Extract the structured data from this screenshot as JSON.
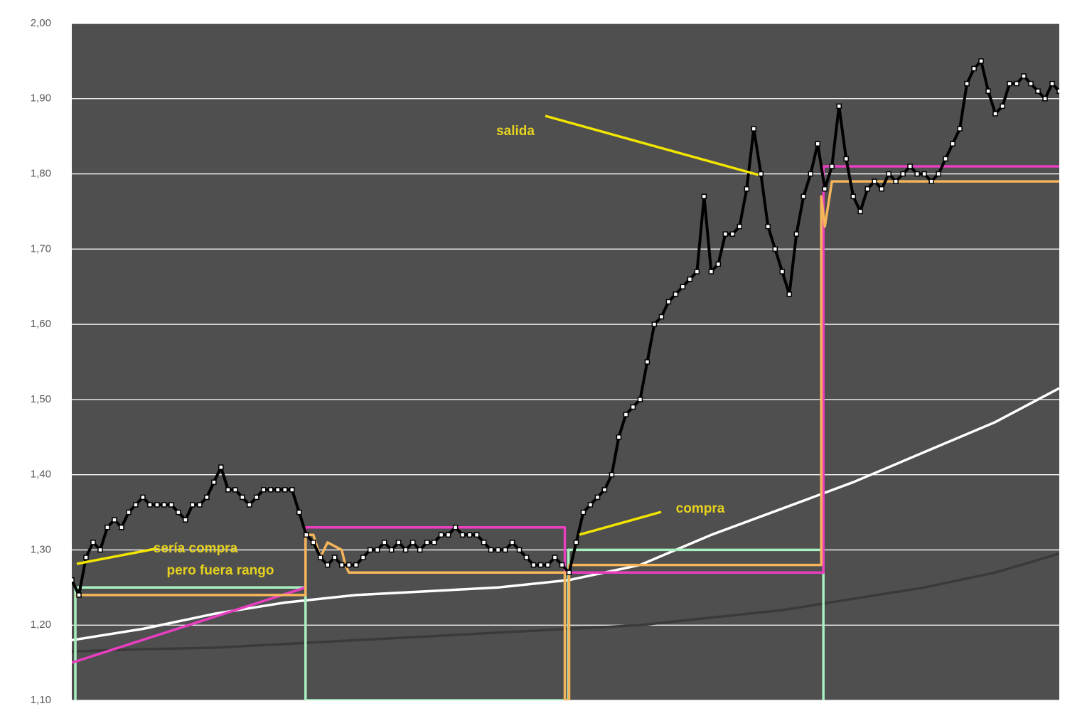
{
  "chart_data": {
    "type": "line",
    "ylim": [
      1.1,
      2.0
    ],
    "yticks": [
      {
        "value": 1.1,
        "label": "1,10"
      },
      {
        "value": 1.2,
        "label": "1,20"
      },
      {
        "value": 1.3,
        "label": "1,30"
      },
      {
        "value": 1.4,
        "label": "1,40"
      },
      {
        "value": 1.5,
        "label": "1,50"
      },
      {
        "value": 1.6,
        "label": "1,60"
      },
      {
        "value": 1.7,
        "label": "1,70"
      },
      {
        "value": 1.8,
        "label": "1,80"
      },
      {
        "value": 1.9,
        "label": "1,90"
      },
      {
        "value": 2.0,
        "label": "2,00"
      }
    ],
    "xlim": [
      0,
      139
    ],
    "grid": true,
    "background": "#4f4f4f",
    "annotations": [
      "salida",
      "compra",
      "sería compra",
      "pero fuera rango"
    ],
    "series": [
      {
        "color": "#ffffff",
        "x": [
          0,
          10,
          20,
          30,
          40,
          50,
          60,
          70,
          80,
          90,
          100,
          110,
          120,
          130,
          139
        ],
        "values": [
          1.18,
          1.195,
          1.215,
          1.23,
          1.24,
          1.245,
          1.25,
          1.26,
          1.28,
          1.32,
          1.355,
          1.39,
          1.43,
          1.47,
          1.515
        ]
      },
      {
        "color": "#3a3a3a",
        "x": [
          0,
          10,
          20,
          30,
          40,
          50,
          60,
          70,
          80,
          90,
          100,
          110,
          120,
          130,
          139
        ],
        "values": [
          1.165,
          1.168,
          1.17,
          1.175,
          1.18,
          1.185,
          1.19,
          1.195,
          1.2,
          1.21,
          1.22,
          1.235,
          1.25,
          1.27,
          1.295
        ]
      },
      {
        "color": "#a8f0c0",
        "x": [
          0.5,
          0.5,
          32.9,
          32.9,
          69.9,
          69.9,
          105.8,
          105.8
        ],
        "values": [
          1.1,
          1.25,
          1.25,
          1.1,
          1.1,
          1.3,
          1.3,
          1.1
        ]
      },
      {
        "color": "#e83ec0",
        "x": [
          0,
          32.9,
          32.9,
          69.4,
          69.4,
          105.8,
          105.8,
          139
        ],
        "values": [
          1.15,
          1.25,
          1.33,
          1.33,
          1.27,
          1.27,
          1.81,
          1.81
        ]
      },
      {
        "color": "#f5b55a",
        "x": [
          0.5,
          32.9,
          32.9,
          34,
          35,
          36,
          38,
          38.5,
          39,
          69.4,
          69.4,
          70,
          70,
          105.5,
          105.5,
          106,
          107,
          139
        ],
        "values": [
          1.24,
          1.24,
          1.32,
          1.32,
          1.29,
          1.31,
          1.3,
          1.28,
          1.27,
          1.27,
          1.1,
          1.1,
          1.28,
          1.28,
          1.77,
          1.73,
          1.79,
          1.79
        ]
      },
      {
        "color": "#000000",
        "markers": true,
        "values": [
          1.26,
          1.24,
          1.29,
          1.31,
          1.3,
          1.33,
          1.34,
          1.33,
          1.35,
          1.36,
          1.37,
          1.36,
          1.36,
          1.36,
          1.36,
          1.35,
          1.34,
          1.36,
          1.36,
          1.37,
          1.39,
          1.41,
          1.38,
          1.38,
          1.37,
          1.36,
          1.37,
          1.38,
          1.38,
          1.38,
          1.38,
          1.38,
          1.35,
          1.32,
          1.31,
          1.29,
          1.28,
          1.29,
          1.28,
          1.28,
          1.28,
          1.29,
          1.3,
          1.3,
          1.31,
          1.3,
          1.31,
          1.3,
          1.31,
          1.3,
          1.31,
          1.31,
          1.32,
          1.32,
          1.33,
          1.32,
          1.32,
          1.32,
          1.31,
          1.3,
          1.3,
          1.3,
          1.31,
          1.3,
          1.29,
          1.28,
          1.28,
          1.28,
          1.29,
          1.28,
          1.27,
          1.31,
          1.35,
          1.36,
          1.37,
          1.38,
          1.4,
          1.45,
          1.48,
          1.49,
          1.5,
          1.55,
          1.6,
          1.61,
          1.63,
          1.64,
          1.65,
          1.66,
          1.67,
          1.77,
          1.67,
          1.68,
          1.72,
          1.72,
          1.73,
          1.78,
          1.86,
          1.8,
          1.73,
          1.7,
          1.67,
          1.64,
          1.72,
          1.77,
          1.8,
          1.84,
          1.78,
          1.81,
          1.89,
          1.82,
          1.77,
          1.75,
          1.78,
          1.79,
          1.78,
          1.8,
          1.79,
          1.8,
          1.81,
          1.8,
          1.8,
          1.79,
          1.8,
          1.82,
          1.84,
          1.86,
          1.92,
          1.94,
          1.95,
          1.91,
          1.88,
          1.89,
          1.92,
          1.92,
          1.93,
          1.92,
          1.91,
          1.9,
          1.92,
          1.91
        ]
      }
    ]
  }
}
